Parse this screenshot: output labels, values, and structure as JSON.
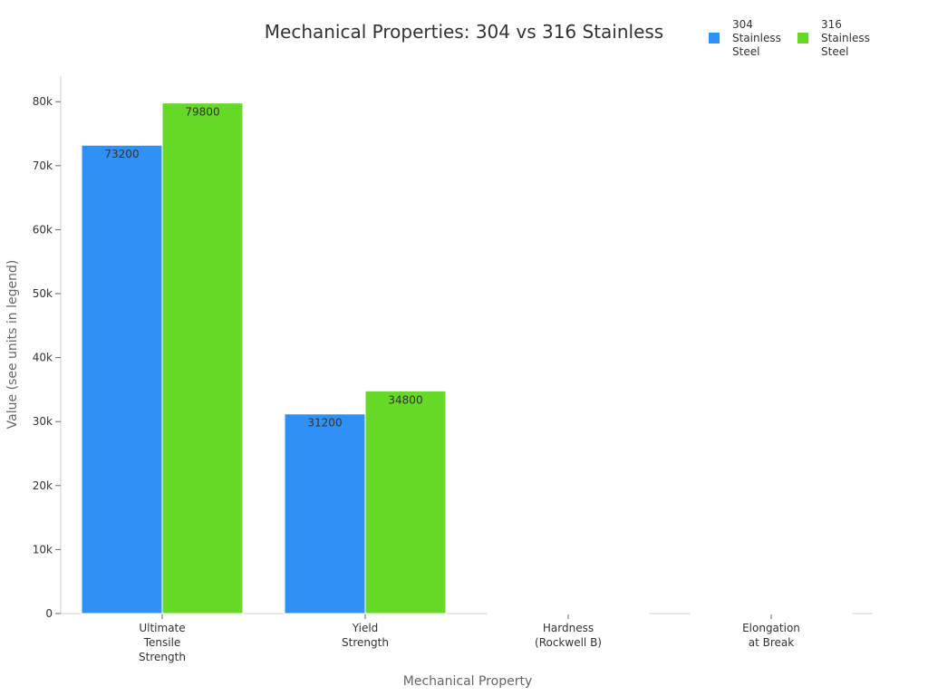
{
  "chart_data": {
    "type": "bar",
    "title": "Mechanical Properties: 304 vs 316 Stainless",
    "xlabel": "Mechanical Property",
    "ylabel": "Value (see units in legend)",
    "categories": [
      [
        "Ultimate",
        "Tensile",
        "Strength"
      ],
      [
        "Yield",
        "Strength"
      ],
      [
        "Hardness",
        "(Rockwell B)"
      ],
      [
        "Elongation",
        "at Break"
      ]
    ],
    "series": [
      {
        "name": [
          "304",
          "Stainless",
          "Steel"
        ],
        "color": "#2f91f5",
        "values": [
          73200,
          31200,
          70,
          70
        ],
        "labels": [
          "73200",
          "31200",
          "",
          ""
        ]
      },
      {
        "name": [
          "316",
          "Stainless",
          "Steel"
        ],
        "color": "#66d926",
        "values": [
          79800,
          34800,
          79,
          60
        ],
        "labels": [
          "79800",
          "34800",
          "",
          ""
        ]
      }
    ],
    "ylim": [
      0,
      84000
    ],
    "yticks": [
      0,
      10000,
      20000,
      30000,
      40000,
      50000,
      60000,
      70000,
      80000
    ],
    "ytick_labels": [
      "0",
      "10k",
      "20k",
      "30k",
      "40k",
      "50k",
      "60k",
      "70k",
      "80k"
    ],
    "grid": false,
    "legend_position": "top-right"
  }
}
